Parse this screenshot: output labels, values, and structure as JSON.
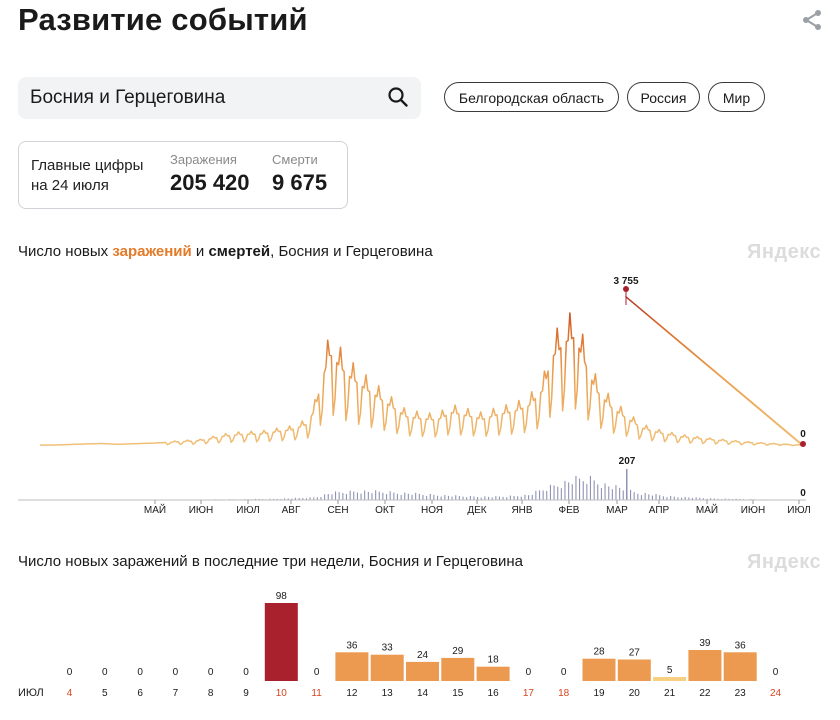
{
  "header": {
    "title": "Развитие событий",
    "share_icon": "share-icon"
  },
  "search": {
    "value": "Босния и Герцеговина",
    "icon": "search-icon"
  },
  "regions": [
    "Белгородская область",
    "Россия",
    "Мир"
  ],
  "summary": {
    "label_line1": "Главные цифры",
    "label_line2": "на 24 июля",
    "infections_label": "Заражения",
    "infections_value": "205 420",
    "deaths_label": "Смерти",
    "deaths_value": "9 675"
  },
  "colors": {
    "accent": "#e37b2a",
    "peak": "#a8212c",
    "deaths": "#8f93b5",
    "bar_mid": "#ec9a4f",
    "bar_low": "#f6cf80"
  },
  "chart1_title": {
    "prefix": "Число новых ",
    "infections_word": "заражений",
    "middle": " и ",
    "deaths_word": "смертей",
    "suffix": ", Босния и Герцеговина"
  },
  "chart2_title": "Число новых заражений в последние три недели, Босния и Герцеговина",
  "watermark": "Яндекс",
  "chart_data": [
    {
      "type": "line",
      "title": "Число новых заражений и смертей, Босния и Герцеговина",
      "x_ticks": [
        "МАЙ",
        "ИЮН",
        "ИЮЛ",
        "АВГ",
        "СЕН",
        "ОКТ",
        "НОЯ",
        "ДЕК",
        "ЯНВ",
        "ФЕВ",
        "МАР",
        "АПР",
        "МАЙ",
        "ИЮН",
        "ИЮЛ"
      ],
      "series": [
        {
          "name": "Заражения",
          "peak_value": "3 755",
          "last_value": "0",
          "ylim": [
            0,
            3755
          ],
          "shape": [
            [
              0,
              20
            ],
            [
              0.02,
              25
            ],
            [
              0.08,
              60
            ],
            [
              0.1,
              40
            ],
            [
              0.15,
              70
            ],
            [
              0.19,
              110
            ],
            [
              0.21,
              130
            ],
            [
              0.24,
              230
            ],
            [
              0.26,
              270
            ],
            [
              0.29,
              290
            ],
            [
              0.33,
              390
            ],
            [
              0.35,
              520
            ],
            [
              0.36,
              860
            ],
            [
              0.37,
              1600
            ],
            [
              0.38,
              2200
            ],
            [
              0.4,
              1750
            ],
            [
              0.42,
              1450
            ],
            [
              0.44,
              1200
            ],
            [
              0.46,
              950
            ],
            [
              0.48,
              700
            ],
            [
              0.5,
              650
            ],
            [
              0.52,
              620
            ],
            [
              0.54,
              800
            ],
            [
              0.56,
              720
            ],
            [
              0.58,
              640
            ],
            [
              0.6,
              750
            ],
            [
              0.62,
              820
            ],
            [
              0.64,
              950
            ],
            [
              0.66,
              1350
            ],
            [
              0.67,
              2100
            ],
            [
              0.68,
              2300
            ],
            [
              0.69,
              2500
            ],
            [
              0.7,
              2600
            ],
            [
              0.71,
              2200
            ],
            [
              0.72,
              1700
            ],
            [
              0.73,
              1300
            ],
            [
              0.75,
              900
            ],
            [
              0.77,
              650
            ],
            [
              0.79,
              420
            ],
            [
              0.81,
              320
            ],
            [
              0.84,
              220
            ],
            [
              0.88,
              150
            ],
            [
              0.92,
              90
            ],
            [
              0.96,
              50
            ],
            [
              1.0,
              20
            ]
          ]
        },
        {
          "name": "Смерти",
          "peak_value": "207",
          "last_value": "0",
          "ylim": [
            0,
            207
          ],
          "shape": [
            [
              0,
              0
            ],
            [
              0.2,
              3
            ],
            [
              0.3,
              8
            ],
            [
              0.36,
              20
            ],
            [
              0.38,
              55
            ],
            [
              0.42,
              70
            ],
            [
              0.46,
              60
            ],
            [
              0.5,
              45
            ],
            [
              0.55,
              30
            ],
            [
              0.6,
              25
            ],
            [
              0.64,
              40
            ],
            [
              0.67,
              110
            ],
            [
              0.7,
              160
            ],
            [
              0.72,
              170
            ],
            [
              0.74,
              120
            ],
            [
              0.78,
              60
            ],
            [
              0.82,
              30
            ],
            [
              0.88,
              12
            ],
            [
              0.94,
              5
            ],
            [
              1.0,
              0
            ]
          ]
        }
      ]
    },
    {
      "type": "bar",
      "title": "Число новых заражений в последние три недели, Босния и Герцеговина",
      "month_label": "ИЮЛ",
      "categories": [
        "4",
        "5",
        "6",
        "7",
        "8",
        "9",
        "10",
        "11",
        "12",
        "13",
        "14",
        "15",
        "16",
        "17",
        "18",
        "19",
        "20",
        "21",
        "22",
        "23",
        "24"
      ],
      "values": [
        0,
        0,
        0,
        0,
        0,
        0,
        98,
        0,
        36,
        33,
        24,
        29,
        18,
        0,
        0,
        28,
        27,
        5,
        39,
        36,
        0
      ],
      "weekend": [
        "4",
        "10",
        "11",
        "17",
        "18",
        "24"
      ],
      "ylim": [
        0,
        98
      ]
    }
  ]
}
